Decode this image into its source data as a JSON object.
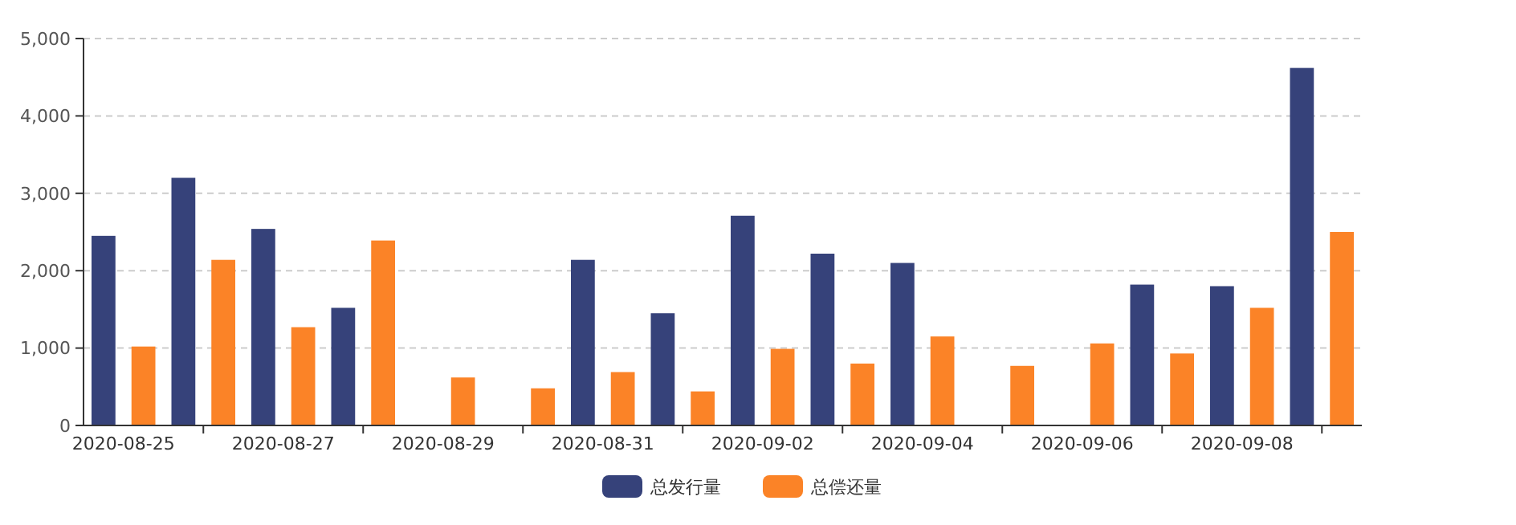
{
  "chart_data": {
    "type": "bar",
    "categories": [
      "2020-08-25",
      null,
      "2020-08-27",
      null,
      "2020-08-29",
      null,
      "2020-08-31",
      null,
      "2020-09-02",
      null,
      "2020-09-04",
      null,
      "2020-09-06",
      null,
      "2020-09-08",
      null
    ],
    "series": [
      {
        "name": "总发行量",
        "color": "#36427a",
        "values": [
          2450,
          3200,
          2540,
          1520,
          null,
          null,
          2140,
          1450,
          2710,
          2220,
          2100,
          null,
          null,
          1820,
          1800,
          4620
        ]
      },
      {
        "name": "总偿还量",
        "color": "#fb8327",
        "values": [
          1020,
          2140,
          1270,
          2390,
          620,
          480,
          690,
          440,
          990,
          800,
          1150,
          770,
          1060,
          930,
          1520,
          2500
        ]
      }
    ],
    "ylim": [
      0,
      5000
    ],
    "yticks": [
      {
        "value": 0,
        "label": "0"
      },
      {
        "value": 1000,
        "label": "1,000"
      },
      {
        "value": 2000,
        "label": "2,000"
      },
      {
        "value": 3000,
        "label": "3,000"
      },
      {
        "value": 4000,
        "label": "4,000"
      },
      {
        "value": 5000,
        "label": "5,000"
      }
    ],
    "grid": "y",
    "legend": "bottom"
  }
}
